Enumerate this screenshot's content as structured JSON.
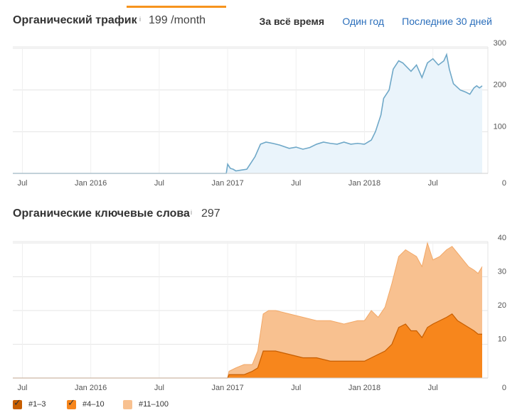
{
  "traffic": {
    "title": "Органический трафик",
    "info": "i",
    "value": "199 /month",
    "tabs": [
      {
        "label": "За всё время",
        "active": true
      },
      {
        "label": "Один год",
        "active": false
      },
      {
        "label": "Последние 30 дней",
        "active": false
      }
    ]
  },
  "keywords": {
    "title": "Органические ключевые слова",
    "info": "i",
    "value": "297"
  },
  "legend": [
    {
      "label": "#1–3",
      "color": "#c75e00",
      "checked": true
    },
    {
      "label": "#4–10",
      "color": "#f7861c",
      "checked": true
    },
    {
      "label": "#11–100",
      "color": "#f8c190",
      "checked": false
    }
  ],
  "colors": {
    "accent": "#f7941d",
    "traffic_line": "#6fa8c8",
    "traffic_fill": "#eaf4fb",
    "grid": "#e5e5e5",
    "link": "#2a6ebb"
  },
  "chart_data": [
    {
      "type": "area",
      "x_ticks": [
        "Jul",
        "Jan 2016",
        "Jul",
        "Jan 2017",
        "Jul",
        "Jan 2018",
        "Jul"
      ],
      "x_tick_dates": [
        2015.5,
        2016.0,
        2016.5,
        2017.0,
        2017.5,
        2018.0,
        2018.5
      ],
      "x_range": [
        2015.43,
        2018.86
      ],
      "y_ticks": [
        0,
        100,
        200,
        300
      ],
      "ylim": [
        0,
        300
      ],
      "grid": true,
      "series": [
        {
          "name": "",
          "x": [
            2015.43,
            2016.99,
            2017.0,
            2017.02,
            2017.04,
            2017.06,
            2017.1,
            2017.14,
            2017.16,
            2017.2,
            2017.24,
            2017.28,
            2017.33,
            2017.38,
            2017.45,
            2017.5,
            2017.55,
            2017.6,
            2017.65,
            2017.7,
            2017.75,
            2017.8,
            2017.85,
            2017.9,
            2017.95,
            2018.0,
            2018.05,
            2018.08,
            2018.12,
            2018.14,
            2018.18,
            2018.21,
            2018.25,
            2018.28,
            2018.31,
            2018.34,
            2018.38,
            2018.42,
            2018.46,
            2018.5,
            2018.54,
            2018.58,
            2018.6,
            2018.62,
            2018.65,
            2018.7,
            2018.74,
            2018.77,
            2018.8,
            2018.82,
            2018.84,
            2018.86
          ],
          "y": [
            0,
            0,
            22,
            12,
            10,
            6,
            8,
            10,
            20,
            40,
            70,
            75,
            72,
            68,
            60,
            63,
            58,
            62,
            70,
            75,
            72,
            70,
            75,
            70,
            72,
            70,
            80,
            100,
            140,
            180,
            200,
            250,
            270,
            265,
            255,
            245,
            260,
            230,
            265,
            275,
            260,
            270,
            285,
            250,
            215,
            200,
            195,
            190,
            205,
            210,
            205,
            210
          ]
        }
      ]
    },
    {
      "type": "area",
      "x_ticks": [
        "Jul",
        "Jan 2016",
        "Jul",
        "Jan 2017",
        "Jul",
        "Jan 2018",
        "Jul"
      ],
      "x_tick_dates": [
        2015.5,
        2016.0,
        2016.5,
        2017.0,
        2017.5,
        2018.0,
        2018.5
      ],
      "x_range": [
        2015.43,
        2018.86
      ],
      "y_ticks": [
        0,
        10,
        20,
        30,
        40
      ],
      "ylim": [
        0,
        40
      ],
      "grid": true,
      "series": [
        {
          "name": "#11–100",
          "x": [
            2015.43,
            2017.0,
            2017.01,
            2017.06,
            2017.12,
            2017.18,
            2017.22,
            2017.26,
            2017.3,
            2017.35,
            2017.45,
            2017.55,
            2017.65,
            2017.75,
            2017.85,
            2017.95,
            2018.0,
            2018.05,
            2018.1,
            2018.15,
            2018.2,
            2018.25,
            2018.3,
            2018.34,
            2018.38,
            2018.42,
            2018.46,
            2018.5,
            2018.55,
            2018.6,
            2018.64,
            2018.68,
            2018.72,
            2018.76,
            2018.8,
            2018.83,
            2018.86
          ],
          "y": [
            0,
            0,
            2,
            3,
            4,
            4,
            8,
            19,
            20,
            20,
            19,
            18,
            17,
            17,
            16,
            17,
            17,
            20,
            18,
            21,
            28,
            36,
            38,
            37,
            36,
            33,
            40,
            35,
            36,
            38,
            39,
            37,
            35,
            33,
            32,
            31,
            33
          ]
        },
        {
          "name": "#4–10",
          "x": [
            2015.43,
            2017.0,
            2017.01,
            2017.06,
            2017.12,
            2017.18,
            2017.22,
            2017.26,
            2017.3,
            2017.35,
            2017.45,
            2017.55,
            2017.65,
            2017.75,
            2017.85,
            2017.95,
            2018.0,
            2018.05,
            2018.1,
            2018.15,
            2018.2,
            2018.25,
            2018.3,
            2018.34,
            2018.38,
            2018.42,
            2018.46,
            2018.5,
            2018.55,
            2018.6,
            2018.64,
            2018.68,
            2018.72,
            2018.76,
            2018.8,
            2018.83,
            2018.86
          ],
          "y": [
            0,
            0,
            1,
            1,
            1,
            2,
            3,
            8,
            8,
            8,
            7,
            6,
            6,
            5,
            5,
            5,
            5,
            6,
            7,
            8,
            10,
            15,
            16,
            14,
            14,
            12,
            15,
            16,
            17,
            18,
            19,
            17,
            16,
            15,
            14,
            13,
            13
          ]
        }
      ]
    }
  ]
}
